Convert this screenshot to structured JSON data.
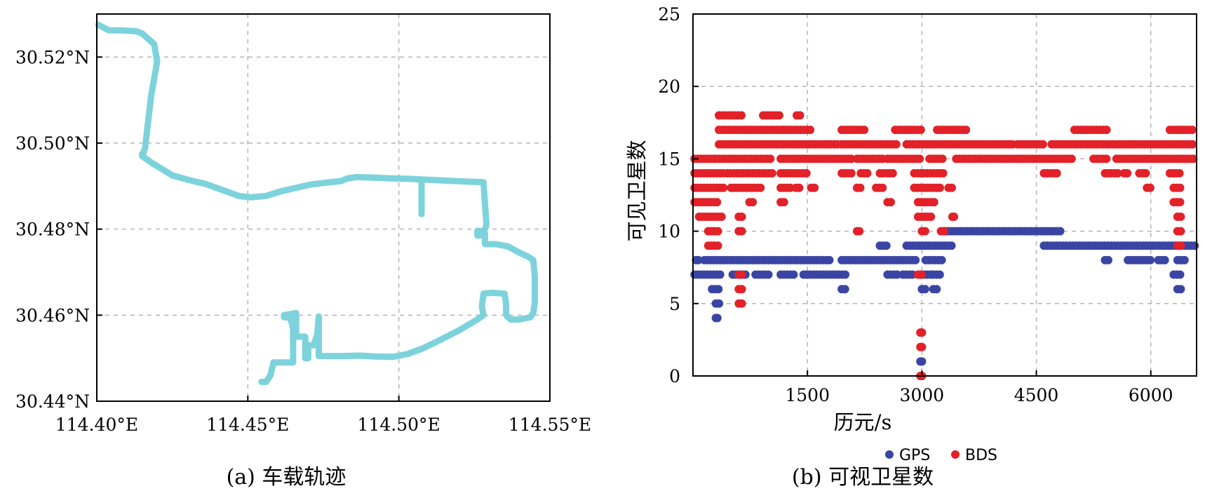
{
  "chart_data": [
    {
      "type": "line",
      "caption": "(a) 车载轨迹",
      "xlim": [
        114.4,
        114.55
      ],
      "ylim": [
        30.44,
        30.53
      ],
      "xticks": [
        114.4,
        114.45,
        114.5,
        114.55
      ],
      "xtick_labels": [
        "114.40°E",
        "114.45°E",
        "114.50°E",
        "114.55°E"
      ],
      "yticks": [
        30.44,
        30.46,
        30.48,
        30.5,
        30.52
      ],
      "ytick_labels": [
        "30.44°N",
        "30.46°N",
        "30.48°N",
        "30.50°N",
        "30.52°N"
      ],
      "grid": true,
      "color": "#7dd3dc",
      "series": [
        {
          "x": [
            114.4005,
            114.404,
            114.408,
            114.413,
            114.415,
            114.419,
            114.42,
            114.419,
            114.418,
            114.417,
            114.416,
            114.4155,
            114.415,
            114.415,
            114.418,
            114.425,
            114.43,
            114.436,
            114.442,
            114.447,
            114.451,
            114.456,
            114.461,
            114.466,
            114.471,
            114.476,
            114.481,
            114.483,
            114.486,
            114.491,
            114.497,
            114.503,
            114.509,
            114.515,
            114.521,
            114.528,
            114.5285,
            114.529,
            114.5285,
            114.528,
            114.526,
            114.526,
            114.528,
            114.5285,
            114.5285,
            114.532,
            114.536,
            114.54,
            114.543,
            114.5445,
            114.545,
            114.545,
            114.5445,
            114.5435,
            114.54,
            114.537,
            114.5355,
            114.5355,
            114.535,
            114.531,
            114.528,
            114.5275,
            114.528,
            114.526,
            114.52,
            114.513,
            114.508,
            114.503,
            114.498,
            114.492,
            114.487,
            114.481,
            114.476,
            114.4735,
            114.4735,
            114.4735,
            114.473,
            114.4718,
            114.47,
            114.47,
            114.469,
            114.469,
            114.469,
            114.466,
            114.466,
            114.462,
            114.462,
            114.464,
            114.465,
            114.465,
            114.461,
            114.4585,
            114.4575,
            114.456,
            114.4545
          ],
          "y": [
            30.5275,
            30.5262,
            30.5262,
            30.526,
            30.5255,
            30.523,
            30.519,
            30.515,
            30.511,
            30.505,
            30.499,
            30.4978,
            30.4975,
            30.497,
            30.4955,
            30.4925,
            30.4915,
            30.4905,
            30.489,
            30.4877,
            30.4874,
            30.4877,
            30.4888,
            30.4896,
            30.4904,
            30.4908,
            30.4912,
            30.4918,
            30.4921,
            30.492,
            30.4918,
            30.4917,
            30.4915,
            30.4913,
            30.4911,
            30.4909,
            30.486,
            30.481,
            30.48,
            30.4795,
            30.4796,
            30.4785,
            30.4786,
            30.479,
            30.4765,
            30.4765,
            30.476,
            30.4745,
            30.4735,
            30.4728,
            30.469,
            30.463,
            30.4605,
            30.4595,
            30.459,
            30.459,
            30.46,
            30.4625,
            30.465,
            30.4652,
            30.465,
            30.462,
            30.46,
            30.459,
            30.4565,
            30.454,
            30.4523,
            30.451,
            30.4503,
            30.4504,
            30.4506,
            30.4505,
            30.4505,
            30.4505,
            30.4555,
            30.4597,
            30.4555,
            30.453,
            30.453,
            30.45,
            30.45,
            30.4535,
            30.455,
            30.455,
            30.4605,
            30.46,
            30.4595,
            30.4595,
            30.457,
            30.449,
            30.449,
            30.449,
            30.446,
            30.4445,
            30.4445
          ]
        },
        {
          "x": [
            114.5075,
            114.5075
          ],
          "y": [
            30.4908,
            30.4835
          ]
        }
      ]
    },
    {
      "type": "scatter",
      "caption": "(b) 可视卫星数",
      "xlabel": "历元/s",
      "ylabel": "可见卫星数",
      "xlim": [
        0,
        6600
      ],
      "ylim": [
        0,
        25
      ],
      "xticks": [
        1500,
        3000,
        4500,
        6000
      ],
      "yticks": [
        0,
        5,
        10,
        15,
        20,
        25
      ],
      "grid": true,
      "legend_position": "bottom",
      "series": [
        {
          "name": "GPS",
          "color": "#3a45a3",
          "segments": [
            {
              "y": 8,
              "x_ranges": [
                [
                  40,
                  70
                ],
                [
                  150,
                  1800
                ],
                [
                  1950,
                  2950
                ],
                [
                  3050,
                  3300
                ],
                [
                  5400,
                  5480
                ],
                [
                  5700,
                  6000
                ],
                [
                  6100,
                  6200
                ],
                [
                  6350,
                  6400
                ],
                [
                  6400,
                  6450
                ]
              ]
            },
            {
              "y": 7,
              "x_ranges": [
                [
                  0,
                  380
                ],
                [
                  520,
                  700
                ],
                [
                  820,
                  1000
                ],
                [
                  1150,
                  1350
                ],
                [
                  1450,
                  2000
                ],
                [
                  2550,
                  2700
                ],
                [
                  2750,
                  2900
                ],
                [
                  2950,
                  3150
                ],
                [
                  3150,
                  3250
                ],
                [
                  6300,
                  6400
                ]
              ]
            },
            {
              "y": 9,
              "x_ranges": [
                [
                  2450,
                  2550
                ],
                [
                  2800,
                  3400
                ],
                [
                  4600,
                  6600
                ]
              ]
            },
            {
              "y": 10,
              "x_ranges": [
                [
                  3300,
                  4850
                ]
              ]
            },
            {
              "y": 6,
              "x_ranges": [
                [
                  250,
                  350
                ],
                [
                  1950,
                  2000
                ],
                [
                  3000,
                  3050
                ],
                [
                  3150,
                  3200
                ],
                [
                  6350,
                  6400
                ]
              ]
            },
            {
              "y": 5,
              "x_ranges": [
                [
                  300,
                  380
                ]
              ]
            },
            {
              "y": 4,
              "x_ranges": [
                [
                  300,
                  320
                ]
              ]
            },
            {
              "y": 1,
              "x_ranges": [
                [
                  2980,
                  3000
                ]
              ]
            },
            {
              "y": 0,
              "x_ranges": [
                [
                  2980,
                  3000
                ]
              ]
            }
          ]
        },
        {
          "name": "BDS",
          "color": "#e32129",
          "segments": [
            {
              "y": 18,
              "x_ranges": [
                [
                  340,
                  640
                ],
                [
                  920,
                  1140
                ],
                [
                  1360,
                  1420
                ]
              ]
            },
            {
              "y": 17,
              "x_ranges": [
                [
                  340,
                  1200
                ],
                [
                  1200,
                  1560
                ],
                [
                  1950,
                  2250
                ],
                [
                  2650,
                  3000
                ],
                [
                  3200,
                  3600
                ],
                [
                  5000,
                  5450
                ],
                [
                  6250,
                  6600
                ]
              ]
            },
            {
              "y": 16,
              "x_ranges": [
                [
                  340,
                  1900
                ],
                [
                  1950,
                  2700
                ],
                [
                  2800,
                  4200
                ],
                [
                  4250,
                  4600
                ],
                [
                  4700,
                  6600
                ]
              ]
            },
            {
              "y": 15,
              "x_ranges": [
                [
                  0,
                  300
                ],
                [
                  300,
                  1050
                ],
                [
                  1150,
                  2100
                ],
                [
                  2150,
                  2500
                ],
                [
                  2550,
                  3000
                ],
                [
                  3100,
                  3300
                ],
                [
                  3450,
                  5000
                ],
                [
                  5250,
                  5450
                ],
                [
                  5550,
                  6600
                ]
              ]
            },
            {
              "y": 14,
              "x_ranges": [
                [
                  0,
                  400
                ],
                [
                  450,
                  1050
                ],
                [
                  1150,
                  1500
                ],
                [
                  1950,
                  2100
                ],
                [
                  2200,
                  2300
                ],
                [
                  2450,
                  2650
                ],
                [
                  2900,
                  3300
                ],
                [
                  4600,
                  4800
                ],
                [
                  5400,
                  5600
                ],
                [
                  5650,
                  5700
                ],
                [
                  5850,
                  5950
                ],
                [
                  6250,
                  6400
                ]
              ]
            },
            {
              "y": 13,
              "x_ranges": [
                [
                  0,
                  400
                ],
                [
                  500,
                  760
                ],
                [
                  800,
                  900
                ],
                [
                  1150,
                  1300
                ],
                [
                  1350,
                  1400
                ],
                [
                  1550,
                  1600
                ],
                [
                  2150,
                  2200
                ],
                [
                  2400,
                  2500
                ],
                [
                  2900,
                  3250
                ],
                [
                  3350,
                  3400
                ],
                [
                  5950,
                  6000
                ],
                [
                  6300,
                  6400
                ]
              ]
            },
            {
              "y": 12,
              "x_ranges": [
                [
                  0,
                  350
                ],
                [
                  740,
                  800
                ],
                [
                  1150,
                  1200
                ],
                [
                  2550,
                  2600
                ],
                [
                  2950,
                  3200
                ],
                [
                  6300,
                  6400
                ]
              ]
            },
            {
              "y": 11,
              "x_ranges": [
                [
                  80,
                  380
                ],
                [
                  600,
                  640
                ],
                [
                  2950,
                  3150
                ],
                [
                  3400,
                  3420
                ],
                [
                  6350,
                  6400
                ]
              ]
            },
            {
              "y": 10,
              "x_ranges": [
                [
                  200,
                  350
                ],
                [
                  600,
                  640
                ],
                [
                  2150,
                  2180
                ],
                [
                  3000,
                  3050
                ],
                [
                  3250,
                  3300
                ],
                [
                  6350,
                  6400
                ]
              ]
            },
            {
              "y": 9,
              "x_ranges": [
                [
                  200,
                  350
                ],
                [
                  6350,
                  6400
                ]
              ]
            },
            {
              "y": 7,
              "x_ranges": [
                [
                  600,
                  640
                ],
                [
                  2950,
                  3000
                ]
              ]
            },
            {
              "y": 6,
              "x_ranges": [
                [
                  600,
                  640
                ]
              ]
            },
            {
              "y": 5,
              "x_ranges": [
                [
                  600,
                  640
                ]
              ]
            },
            {
              "y": 3,
              "x_ranges": [
                [
                  2980,
                  3000
                ]
              ]
            },
            {
              "y": 2,
              "x_ranges": [
                [
                  2980,
                  3000
                ]
              ]
            },
            {
              "y": 0,
              "x_ranges": [
                [
                  2980,
                  3000
                ]
              ]
            }
          ]
        }
      ]
    }
  ]
}
